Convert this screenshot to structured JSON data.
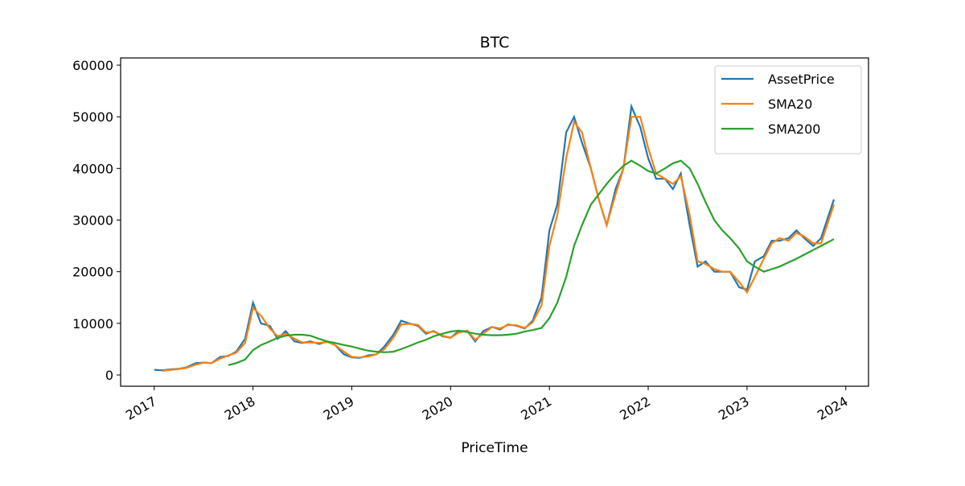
{
  "chart_data": {
    "type": "line",
    "title": "BTC",
    "x_label": "PriceTime",
    "x": [
      2017.0,
      2017.08,
      2017.17,
      2017.25,
      2017.33,
      2017.42,
      2017.5,
      2017.58,
      2017.67,
      2017.75,
      2017.83,
      2017.92,
      2018.0,
      2018.08,
      2018.17,
      2018.25,
      2018.33,
      2018.42,
      2018.5,
      2018.58,
      2018.67,
      2018.75,
      2018.83,
      2018.92,
      2019.0,
      2019.08,
      2019.17,
      2019.25,
      2019.33,
      2019.42,
      2019.5,
      2019.58,
      2019.67,
      2019.75,
      2019.83,
      2019.92,
      2020.0,
      2020.08,
      2020.17,
      2020.25,
      2020.33,
      2020.42,
      2020.5,
      2020.58,
      2020.67,
      2020.75,
      2020.83,
      2020.92,
      2021.0,
      2021.08,
      2021.17,
      2021.25,
      2021.33,
      2021.42,
      2021.5,
      2021.58,
      2021.67,
      2021.75,
      2021.83,
      2021.92,
      2022.0,
      2022.08,
      2022.17,
      2022.25,
      2022.33,
      2022.42,
      2022.5,
      2022.58,
      2022.67,
      2022.75,
      2022.83,
      2022.92,
      2023.0,
      2023.08,
      2023.17,
      2023.25,
      2023.33,
      2023.42,
      2023.5,
      2023.58,
      2023.67,
      2023.75,
      2023.88
    ],
    "series": [
      {
        "name": "AssetPrice",
        "color": "#1f77b4",
        "values": [
          1000,
          900,
          1100,
          1200,
          1500,
          2300,
          2400,
          2300,
          3500,
          3700,
          4500,
          7000,
          14000,
          10000,
          9500,
          7000,
          8500,
          6500,
          6200,
          6500,
          6000,
          6500,
          5800,
          4000,
          3400,
          3300,
          3800,
          4000,
          5500,
          7800,
          10500,
          10000,
          9500,
          8000,
          8500,
          7500,
          7200,
          8500,
          8500,
          6500,
          8500,
          9300,
          8800,
          9800,
          9500,
          9000,
          10500,
          15000,
          28000,
          33000,
          47000,
          50000,
          45000,
          40000,
          34000,
          29000,
          36000,
          40000,
          52000,
          48000,
          42000,
          38000,
          38000,
          36000,
          39000,
          29000,
          21000,
          22000,
          20000,
          20000,
          20000,
          17000,
          16500,
          22000,
          23000,
          26000,
          26000,
          26500,
          28000,
          26500,
          25000,
          26500,
          34000
        ]
      },
      {
        "name": "SMA20",
        "color": "#ff7f0e",
        "values": [
          null,
          800,
          1000,
          1150,
          1400,
          2000,
          2400,
          2300,
          3200,
          3800,
          4300,
          6200,
          13000,
          11500,
          9000,
          7500,
          8000,
          7000,
          6300,
          6300,
          6200,
          6400,
          5800,
          4500,
          3500,
          3400,
          3600,
          4000,
          5000,
          7200,
          9800,
          9900,
          9700,
          8200,
          8400,
          7600,
          7200,
          8200,
          8600,
          6800,
          8000,
          9300,
          9000,
          9700,
          9600,
          9100,
          10200,
          13500,
          25000,
          31000,
          42000,
          49000,
          47000,
          40000,
          34000,
          29000,
          35000,
          40000,
          50000,
          50000,
          44000,
          39000,
          38000,
          37000,
          38500,
          31000,
          22000,
          21500,
          20500,
          20000,
          20000,
          18000,
          16000,
          19000,
          22500,
          25500,
          26500,
          26000,
          27500,
          26800,
          25500,
          25500,
          33000
        ]
      },
      {
        "name": "SMA200",
        "color": "#2ca02c",
        "values": [
          null,
          null,
          null,
          null,
          null,
          null,
          null,
          null,
          null,
          1900,
          2300,
          3000,
          4800,
          5800,
          6500,
          7200,
          7600,
          7800,
          7800,
          7600,
          7000,
          6500,
          6200,
          5800,
          5500,
          5100,
          4700,
          4500,
          4400,
          4500,
          5000,
          5600,
          6300,
          6800,
          7500,
          8000,
          8400,
          8600,
          8300,
          8000,
          7800,
          7700,
          7700,
          7800,
          8000,
          8400,
          8700,
          9100,
          11000,
          14000,
          19000,
          25000,
          29000,
          33000,
          35000,
          37000,
          39000,
          40500,
          41500,
          40500,
          39500,
          39000,
          40000,
          41000,
          41500,
          40000,
          37000,
          33500,
          30000,
          28000,
          26500,
          24500,
          22000,
          21000,
          20000,
          20500,
          21000,
          21800,
          22500,
          23300,
          24200,
          25000,
          26300
        ]
      }
    ],
    "xlim": [
      2016.66,
      2024.23
    ],
    "xticks": [
      2017,
      2018,
      2019,
      2020,
      2021,
      2022,
      2023,
      2024
    ],
    "ylim": [
      -2180,
      61400
    ],
    "yticks": [
      0,
      10000,
      20000,
      30000,
      40000,
      50000,
      60000
    ],
    "grid": false,
    "legend": "upper right"
  }
}
